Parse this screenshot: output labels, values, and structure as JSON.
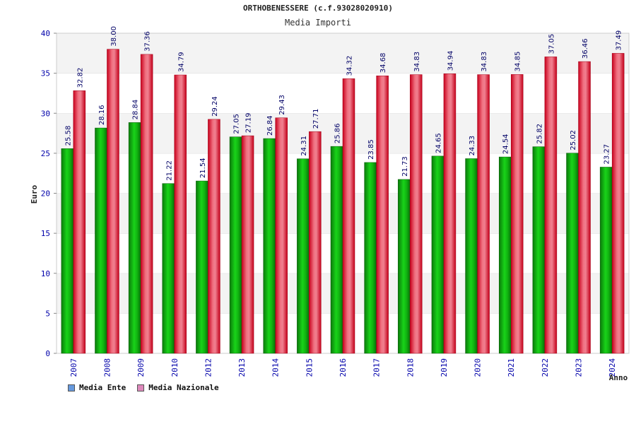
{
  "chart_data": {
    "type": "bar",
    "title": "ORTHOBENESSERE (c.f.93028020910)",
    "subtitle": "Media Importi",
    "xlabel": "Anno",
    "ylabel": "Euro",
    "ylim": [
      0,
      40
    ],
    "yticks": [
      "0",
      "5",
      "10",
      "15",
      "20",
      "25",
      "30",
      "35",
      "40"
    ],
    "categories": [
      "2007",
      "2008",
      "2009",
      "2010",
      "2012",
      "2013",
      "2014",
      "2015",
      "2016",
      "2017",
      "2018",
      "2019",
      "2020",
      "2021",
      "2022",
      "2023",
      "2024"
    ],
    "series": [
      {
        "name": "Media Ente",
        "values": [
          25.58,
          28.16,
          28.84,
          21.22,
          21.54,
          27.05,
          26.84,
          24.31,
          25.86,
          23.85,
          21.73,
          24.65,
          24.33,
          24.54,
          25.82,
          25.02,
          23.27
        ],
        "labels": [
          "25.58",
          "28.16",
          "28.84",
          "21.22",
          "21.54",
          "27.05",
          "26.84",
          "24.31",
          "25.86",
          "23.85",
          "21.73",
          "24.65",
          "24.33",
          "24.54",
          "25.82",
          "25.02",
          "23.27"
        ]
      },
      {
        "name": "Media Nazionale",
        "values": [
          32.82,
          38.0,
          37.36,
          34.79,
          29.24,
          27.19,
          29.43,
          27.71,
          34.32,
          34.68,
          34.83,
          34.94,
          34.83,
          34.85,
          37.05,
          36.46,
          37.49
        ],
        "labels": [
          "32.82",
          "38.00",
          "37.36",
          "34.79",
          "29.24",
          "27.19",
          "29.43",
          "27.71",
          "34.32",
          "34.68",
          "34.83",
          "34.94",
          "34.83",
          "34.85",
          "37.05",
          "36.46",
          "37.49"
        ]
      }
    ],
    "legend": [
      {
        "label": "Media Ente",
        "color": "#6699dd"
      },
      {
        "label": "Media Nazionale",
        "color": "#dd88bb"
      }
    ],
    "grid": true,
    "legend_position": "bottom-left"
  }
}
